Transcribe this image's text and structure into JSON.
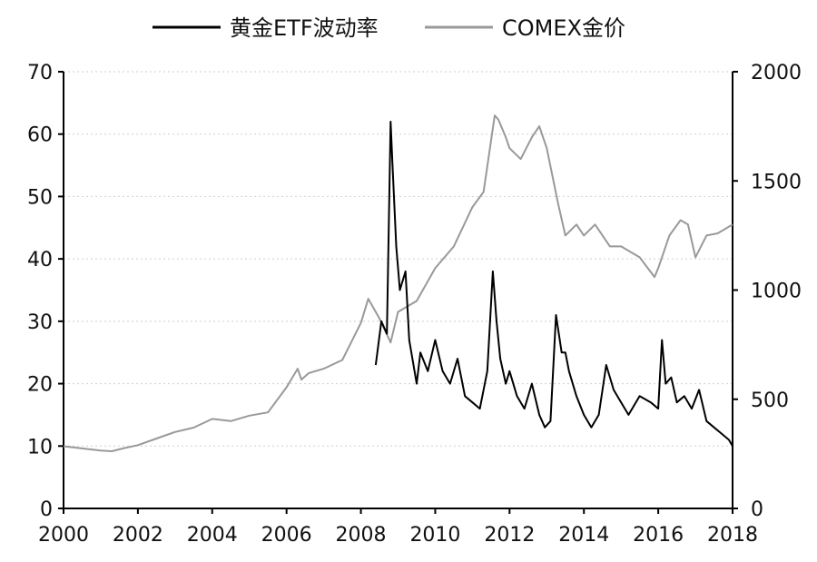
{
  "chart_data": {
    "type": "line",
    "legend": {
      "position": "top",
      "entries": [
        {
          "label": "黄金ETF波动率",
          "color": "#000000",
          "axis": "left"
        },
        {
          "label": "COMEX金价",
          "color": "#999999",
          "axis": "right"
        }
      ]
    },
    "x_axis": {
      "min": 2000,
      "max": 2018,
      "ticks": [
        "2000",
        "2002",
        "2004",
        "2006",
        "2008",
        "2010",
        "2012",
        "2014",
        "2016",
        "2018"
      ]
    },
    "y_left": {
      "min": 0,
      "max": 70,
      "ticks": [
        "0",
        "10",
        "20",
        "30",
        "40",
        "50",
        "60",
        "70"
      ]
    },
    "y_right": {
      "min": 0,
      "max": 2000,
      "ticks": [
        "0",
        "500",
        "1000",
        "1500",
        "2000"
      ]
    },
    "grid": true,
    "series": [
      {
        "name": "黄金ETF波动率",
        "axis": "left",
        "color": "#000000",
        "x": [
          2008.4,
          2008.55,
          2008.7,
          2008.8,
          2008.85,
          2008.95,
          2009.05,
          2009.2,
          2009.3,
          2009.5,
          2009.6,
          2009.8,
          2010.0,
          2010.2,
          2010.4,
          2010.6,
          2010.8,
          2011.0,
          2011.2,
          2011.4,
          2011.55,
          2011.65,
          2011.75,
          2011.9,
          2012.0,
          2012.2,
          2012.4,
          2012.6,
          2012.8,
          2012.95,
          2013.1,
          2013.25,
          2013.4,
          2013.5,
          2013.6,
          2013.8,
          2014.0,
          2014.2,
          2014.4,
          2014.6,
          2014.8,
          2015.0,
          2015.2,
          2015.5,
          2015.8,
          2016.0,
          2016.1,
          2016.2,
          2016.35,
          2016.5,
          2016.7,
          2016.9,
          2017.1,
          2017.3,
          2017.5,
          2017.7,
          2017.9,
          2018.0
        ],
        "y": [
          23,
          30,
          28,
          62,
          55,
          42,
          35,
          38,
          27,
          20,
          25,
          22,
          27,
          22,
          20,
          24,
          18,
          17,
          16,
          22,
          38,
          30,
          24,
          20,
          22,
          18,
          16,
          20,
          15,
          13,
          14,
          31,
          25,
          25,
          22,
          18,
          15,
          13,
          15,
          23,
          19,
          17,
          15,
          18,
          17,
          16,
          27,
          20,
          21,
          17,
          18,
          16,
          19,
          14,
          13,
          12,
          11,
          10
        ]
      },
      {
        "name": "COMEX金价",
        "axis": "right",
        "color": "#999999",
        "x": [
          2000.0,
          2000.5,
          2001.0,
          2001.3,
          2001.6,
          2002.0,
          2002.5,
          2003.0,
          2003.5,
          2004.0,
          2004.5,
          2005.0,
          2005.5,
          2006.0,
          2006.3,
          2006.4,
          2006.6,
          2007.0,
          2007.5,
          2008.0,
          2008.2,
          2008.5,
          2008.8,
          2009.0,
          2009.5,
          2010.0,
          2010.5,
          2011.0,
          2011.3,
          2011.6,
          2011.7,
          2011.9,
          2012.0,
          2012.3,
          2012.6,
          2012.8,
          2013.0,
          2013.3,
          2013.5,
          2013.8,
          2014.0,
          2014.3,
          2014.7,
          2015.0,
          2015.5,
          2015.9,
          2016.0,
          2016.3,
          2016.6,
          2016.8,
          2017.0,
          2017.3,
          2017.6,
          2017.9,
          2018.0
        ],
        "y": [
          285,
          275,
          265,
          262,
          275,
          290,
          320,
          350,
          370,
          410,
          400,
          425,
          440,
          555,
          640,
          590,
          620,
          640,
          680,
          850,
          960,
          870,
          760,
          900,
          950,
          1100,
          1200,
          1380,
          1450,
          1800,
          1780,
          1700,
          1650,
          1600,
          1700,
          1750,
          1650,
          1400,
          1250,
          1300,
          1250,
          1300,
          1200,
          1200,
          1150,
          1060,
          1100,
          1250,
          1320,
          1300,
          1150,
          1250,
          1260,
          1290,
          1300
        ]
      }
    ]
  }
}
